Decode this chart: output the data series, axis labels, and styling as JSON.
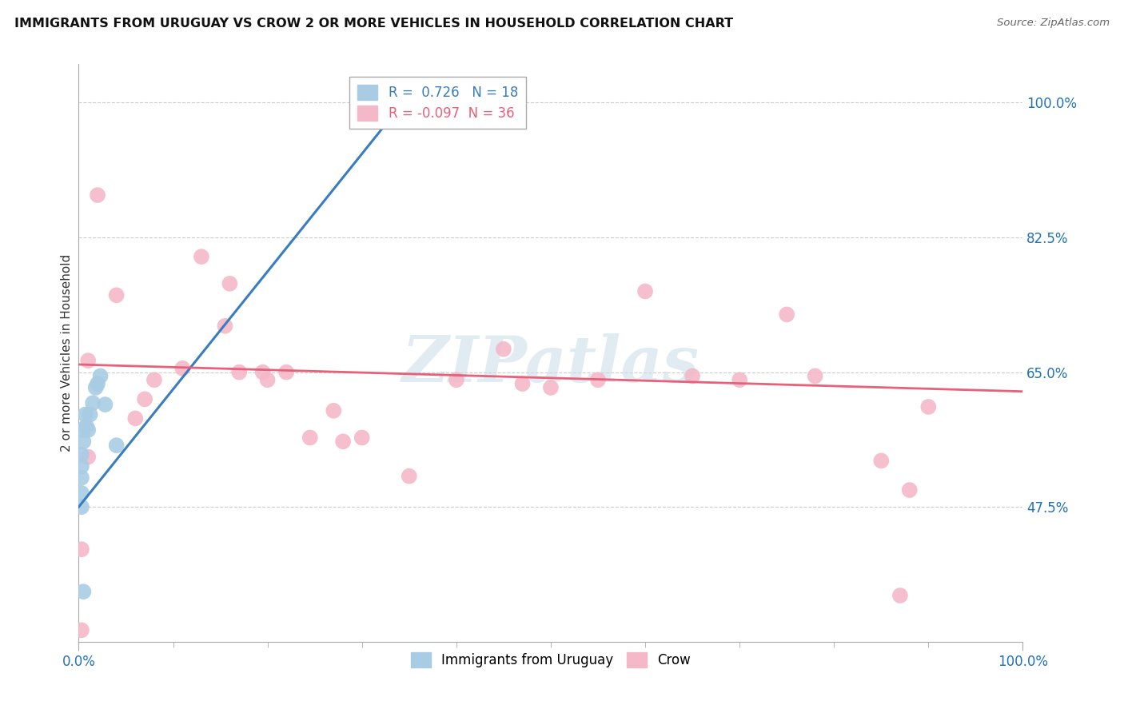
{
  "title": "IMMIGRANTS FROM URUGUAY VS CROW 2 OR MORE VEHICLES IN HOUSEHOLD CORRELATION CHART",
  "source": "Source: ZipAtlas.com",
  "ylabel": "2 or more Vehicles in Household",
  "xlim": [
    0.0,
    1.0
  ],
  "ylim": [
    0.3,
    1.05
  ],
  "x_tick_labels": [
    "0.0%",
    "100.0%"
  ],
  "y_tick_labels": [
    "47.5%",
    "65.0%",
    "82.5%",
    "100.0%"
  ],
  "y_tick_positions": [
    0.475,
    0.65,
    0.825,
    1.0
  ],
  "legend1_label": "Immigrants from Uruguay",
  "legend2_label": "Crow",
  "r_blue": 0.726,
  "n_blue": 18,
  "r_pink": -0.097,
  "n_pink": 36,
  "blue_color": "#a8cce4",
  "pink_color": "#f4b8c8",
  "blue_line_color": "#3a7dbf",
  "pink_line_color": "#e8607a",
  "watermark": "ZIPatlas",
  "blue_points_x": [
    0.003,
    0.003,
    0.003,
    0.003,
    0.005,
    0.005,
    0.007,
    0.008,
    0.01,
    0.012,
    0.015,
    0.018,
    0.02,
    0.023,
    0.028,
    0.04,
    0.005,
    0.003
  ],
  "blue_points_y": [
    0.493,
    0.513,
    0.528,
    0.543,
    0.56,
    0.575,
    0.595,
    0.58,
    0.575,
    0.595,
    0.61,
    0.63,
    0.635,
    0.645,
    0.608,
    0.555,
    0.365,
    0.475
  ],
  "pink_points_x": [
    0.003,
    0.003,
    0.01,
    0.01,
    0.02,
    0.04,
    0.06,
    0.07,
    0.08,
    0.11,
    0.13,
    0.155,
    0.17,
    0.195,
    0.2,
    0.22,
    0.245,
    0.27,
    0.3,
    0.35,
    0.4,
    0.45,
    0.47,
    0.55,
    0.6,
    0.65,
    0.7,
    0.75,
    0.78,
    0.85,
    0.88,
    0.9,
    0.16,
    0.28,
    0.5,
    0.87
  ],
  "pink_points_y": [
    0.42,
    0.315,
    0.665,
    0.54,
    0.88,
    0.75,
    0.59,
    0.615,
    0.64,
    0.655,
    0.8,
    0.71,
    0.65,
    0.65,
    0.64,
    0.65,
    0.565,
    0.6,
    0.565,
    0.515,
    0.64,
    0.68,
    0.635,
    0.64,
    0.755,
    0.645,
    0.64,
    0.725,
    0.645,
    0.535,
    0.497,
    0.605,
    0.765,
    0.56,
    0.63,
    0.36
  ],
  "blue_line_x": [
    0.0,
    0.35
  ],
  "blue_line_y": [
    0.475,
    1.01
  ],
  "pink_line_x": [
    0.0,
    1.0
  ],
  "pink_line_y": [
    0.66,
    0.625
  ],
  "background_color": "#ffffff",
  "grid_color": "#cccccc"
}
